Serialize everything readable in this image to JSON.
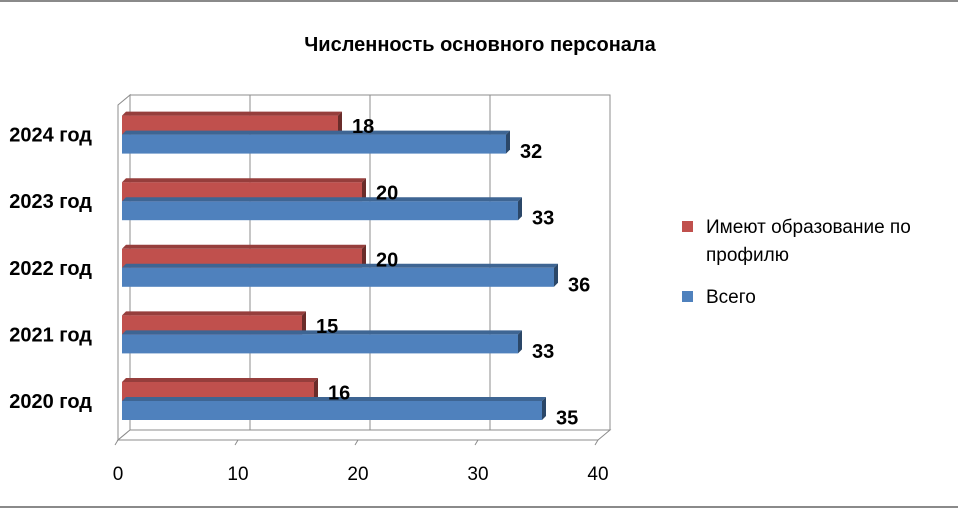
{
  "chart_data": {
    "type": "bar",
    "orientation": "horizontal",
    "three_d": true,
    "title": "Численность основного персонала",
    "categories": [
      "2020 год",
      "2021 год",
      "2022 год",
      "2023 год",
      "2024 год"
    ],
    "series": [
      {
        "name": "Всего",
        "color": "#4F81BD",
        "values": [
          35,
          33,
          36,
          33,
          32
        ]
      },
      {
        "name": " Имеют образование по профилю",
        "color": "#C0504D",
        "values": [
          16,
          15,
          20,
          20,
          18
        ]
      }
    ],
    "x_ticks": [
      "0",
      "10",
      "20",
      "30",
      "40"
    ],
    "xlim": [
      0,
      40
    ],
    "grid": "vertical",
    "legend_position": "right"
  }
}
